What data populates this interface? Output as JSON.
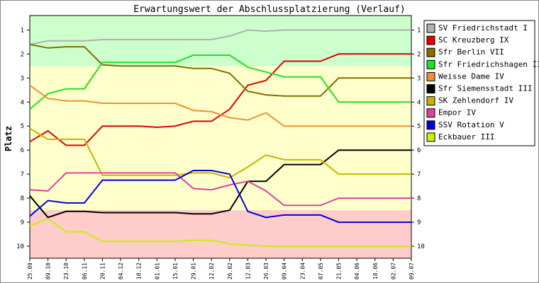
{
  "chart_data": {
    "type": "line",
    "title": "Erwartungswert der Abschlussplatzierung (Verlauf)",
    "y_label": "Platz",
    "categories": [
      "25.09",
      "09.10",
      "23.10",
      "06.11",
      "20.11",
      "04.12",
      "18.12",
      "01.01",
      "15.01",
      "29.01",
      "12.02",
      "26.02",
      "12.03",
      "26.03",
      "09.04",
      "23.04",
      "07.05",
      "21.05",
      "04.06",
      "18.06",
      "02.07",
      "09.07"
    ],
    "ylim": [
      10.5,
      0.4
    ],
    "yticks": [
      1,
      2,
      3,
      4,
      5,
      6,
      7,
      8,
      9,
      10
    ],
    "bands": [
      {
        "from": 0.4,
        "to": 2.5,
        "color": "#ccffcc"
      },
      {
        "from": 2.5,
        "to": 8.5,
        "color": "#ffffcc"
      },
      {
        "from": 8.5,
        "to": 10.5,
        "color": "#ffcccc"
      }
    ],
    "series": [
      {
        "name": "SV Friedrichstadt I",
        "color": "#b0b0b0",
        "values": [
          1.6,
          1.45,
          1.45,
          1.45,
          1.4,
          1.4,
          1.4,
          1.4,
          1.4,
          1.4,
          1.4,
          1.25,
          1.0,
          1.05,
          1.0,
          1.0,
          1.0,
          1.0,
          1.0,
          1.0,
          1.0,
          1.0
        ]
      },
      {
        "name": "SC Kreuzberg IX",
        "color": "#e00000",
        "values": [
          5.65,
          5.2,
          5.8,
          5.8,
          5.0,
          5.0,
          5.0,
          5.05,
          5.0,
          4.8,
          4.8,
          4.3,
          3.3,
          3.1,
          2.3,
          2.3,
          2.3,
          2.0,
          2.0,
          2.0,
          2.0,
          2.0
        ]
      },
      {
        "name": "Sfr Berlin VII",
        "color": "#807000",
        "values": [
          1.6,
          1.75,
          1.7,
          1.7,
          2.45,
          2.5,
          2.5,
          2.5,
          2.5,
          2.6,
          2.6,
          2.8,
          3.55,
          3.7,
          3.75,
          3.75,
          3.75,
          3.0,
          3.0,
          3.0,
          3.0,
          3.0
        ]
      },
      {
        "name": "Sfr Friedrichshagen II",
        "color": "#20e020",
        "values": [
          4.3,
          3.65,
          3.45,
          3.45,
          2.35,
          2.35,
          2.35,
          2.35,
          2.35,
          2.05,
          2.05,
          2.05,
          2.55,
          2.75,
          2.95,
          2.95,
          2.95,
          4.0,
          4.0,
          4.0,
          4.0,
          4.0
        ]
      },
      {
        "name": "Weisse Dame IV",
        "color": "#f09030",
        "values": [
          3.3,
          3.85,
          3.95,
          3.95,
          4.05,
          4.05,
          4.05,
          4.05,
          4.05,
          4.35,
          4.4,
          4.65,
          4.75,
          4.45,
          5.0,
          5.0,
          5.0,
          5.0,
          5.0,
          5.0,
          5.0,
          5.0
        ]
      },
      {
        "name": "Sfr Siemensstadt III",
        "color": "#000000",
        "values": [
          7.9,
          8.8,
          8.55,
          8.55,
          8.6,
          8.6,
          8.6,
          8.6,
          8.6,
          8.65,
          8.65,
          8.5,
          7.3,
          7.3,
          6.6,
          6.6,
          6.6,
          6.0,
          6.0,
          6.0,
          6.0,
          6.0
        ]
      },
      {
        "name": "SK Zehlendorf IV",
        "color": "#c8b400",
        "values": [
          5.1,
          5.55,
          5.55,
          5.55,
          7.05,
          7.05,
          7.05,
          7.05,
          7.05,
          6.95,
          6.95,
          7.15,
          6.7,
          6.2,
          6.4,
          6.4,
          6.4,
          7.0,
          7.0,
          7.0,
          7.0,
          7.0
        ]
      },
      {
        "name": "Empor IV",
        "color": "#e040a0",
        "values": [
          7.65,
          7.7,
          6.95,
          6.95,
          6.95,
          6.95,
          6.95,
          6.95,
          6.95,
          7.6,
          7.65,
          7.45,
          7.3,
          7.7,
          8.3,
          8.3,
          8.3,
          8.0,
          8.0,
          8.0,
          8.0,
          8.0
        ]
      },
      {
        "name": "SSV Rotation V",
        "color": "#0000e0",
        "values": [
          8.75,
          8.1,
          8.2,
          8.2,
          7.25,
          7.25,
          7.25,
          7.25,
          7.25,
          6.85,
          6.85,
          7.0,
          8.55,
          8.8,
          8.7,
          8.7,
          8.7,
          9.0,
          9.0,
          9.0,
          9.0,
          9.0
        ]
      },
      {
        "name": "Eckbauer III",
        "color": "#c8f000",
        "values": [
          9.15,
          8.85,
          9.4,
          9.4,
          9.8,
          9.8,
          9.8,
          9.8,
          9.8,
          9.75,
          9.75,
          9.9,
          9.95,
          10.0,
          10.0,
          10.0,
          10.0,
          10.0,
          10.0,
          10.0,
          10.0,
          10.0
        ]
      }
    ]
  }
}
